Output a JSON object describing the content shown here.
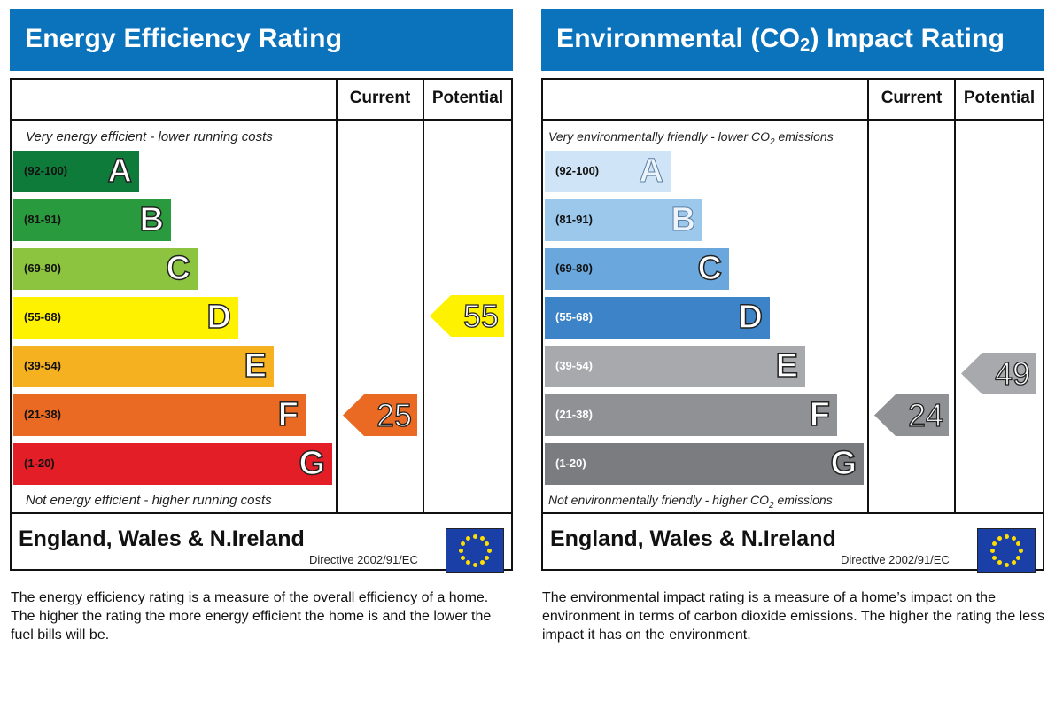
{
  "chart_data": [
    {
      "type": "bar",
      "title": "Energy Efficiency Rating",
      "columns": [
        "Current",
        "Potential"
      ],
      "top_note": "Very energy efficient - lower running costs",
      "bottom_note": "Not energy efficient - higher running costs",
      "bands": [
        {
          "range": "(92-100)",
          "letter": "A",
          "color": "#0f7b3a"
        },
        {
          "range": "(81-91)",
          "letter": "B",
          "color": "#2a9a3e"
        },
        {
          "range": "(69-80)",
          "letter": "C",
          "color": "#8cc43f"
        },
        {
          "range": "(55-68)",
          "letter": "D",
          "color": "#fff200"
        },
        {
          "range": "(39-54)",
          "letter": "E",
          "color": "#f5b120"
        },
        {
          "range": "(21-38)",
          "letter": "F",
          "color": "#ea6a24"
        },
        {
          "range": "(1-20)",
          "letter": "G",
          "color": "#e41e26"
        }
      ],
      "current": {
        "value": "25",
        "band": "F",
        "color": "#ea6a24"
      },
      "potential": {
        "value": "55",
        "band": "D",
        "color": "#fff200"
      },
      "region": "England, Wales & N.Ireland",
      "directive": "Directive 2002/91/EC",
      "description": "The energy efficiency rating is a measure of the overall efficiency of a home. The higher the rating the more energy efficient the home is and the lower the fuel bills will be."
    },
    {
      "type": "bar",
      "title": "Environmental (CO2) Impact Rating",
      "columns": [
        "Current",
        "Potential"
      ],
      "top_note": "Very environmentally friendly - lower CO2 emissions",
      "bottom_note": "Not environmentally friendly - higher CO2 emissions",
      "bands": [
        {
          "range": "(92-100)",
          "letter": "A",
          "color": "#cfe4f6"
        },
        {
          "range": "(81-91)",
          "letter": "B",
          "color": "#9cc8ec"
        },
        {
          "range": "(69-80)",
          "letter": "C",
          "color": "#6aa7dd"
        },
        {
          "range": "(55-68)",
          "letter": "D",
          "color": "#3d83c8"
        },
        {
          "range": "(39-54)",
          "letter": "E",
          "color": "#a7a9ac"
        },
        {
          "range": "(21-38)",
          "letter": "F",
          "color": "#8f9194"
        },
        {
          "range": "(1-20)",
          "letter": "G",
          "color": "#7a7c7f"
        }
      ],
      "current": {
        "value": "24",
        "band": "F",
        "color": "#8f9194"
      },
      "potential": {
        "value": "49",
        "band": "E",
        "color": "#a7a9ac"
      },
      "region": "England, Wales & N.Ireland",
      "directive": "Directive 2002/91/EC",
      "description": "The environmental impact rating is a measure of a home’s impact on the environment in terms of carbon dioxide emissions. The higher the rating the less impact it has on the environment."
    }
  ],
  "co2": {
    "title_pre": "Environmental (CO",
    "title_sub": "2",
    "title_post": ") Impact Rating",
    "top_pre": "Very environmentally friendly - lower CO",
    "top_sub": "2",
    "top_post": " emissions",
    "bottom_pre": "Not environmentally friendly - higher CO",
    "bottom_sub": "2",
    "bottom_post": " emissions"
  }
}
